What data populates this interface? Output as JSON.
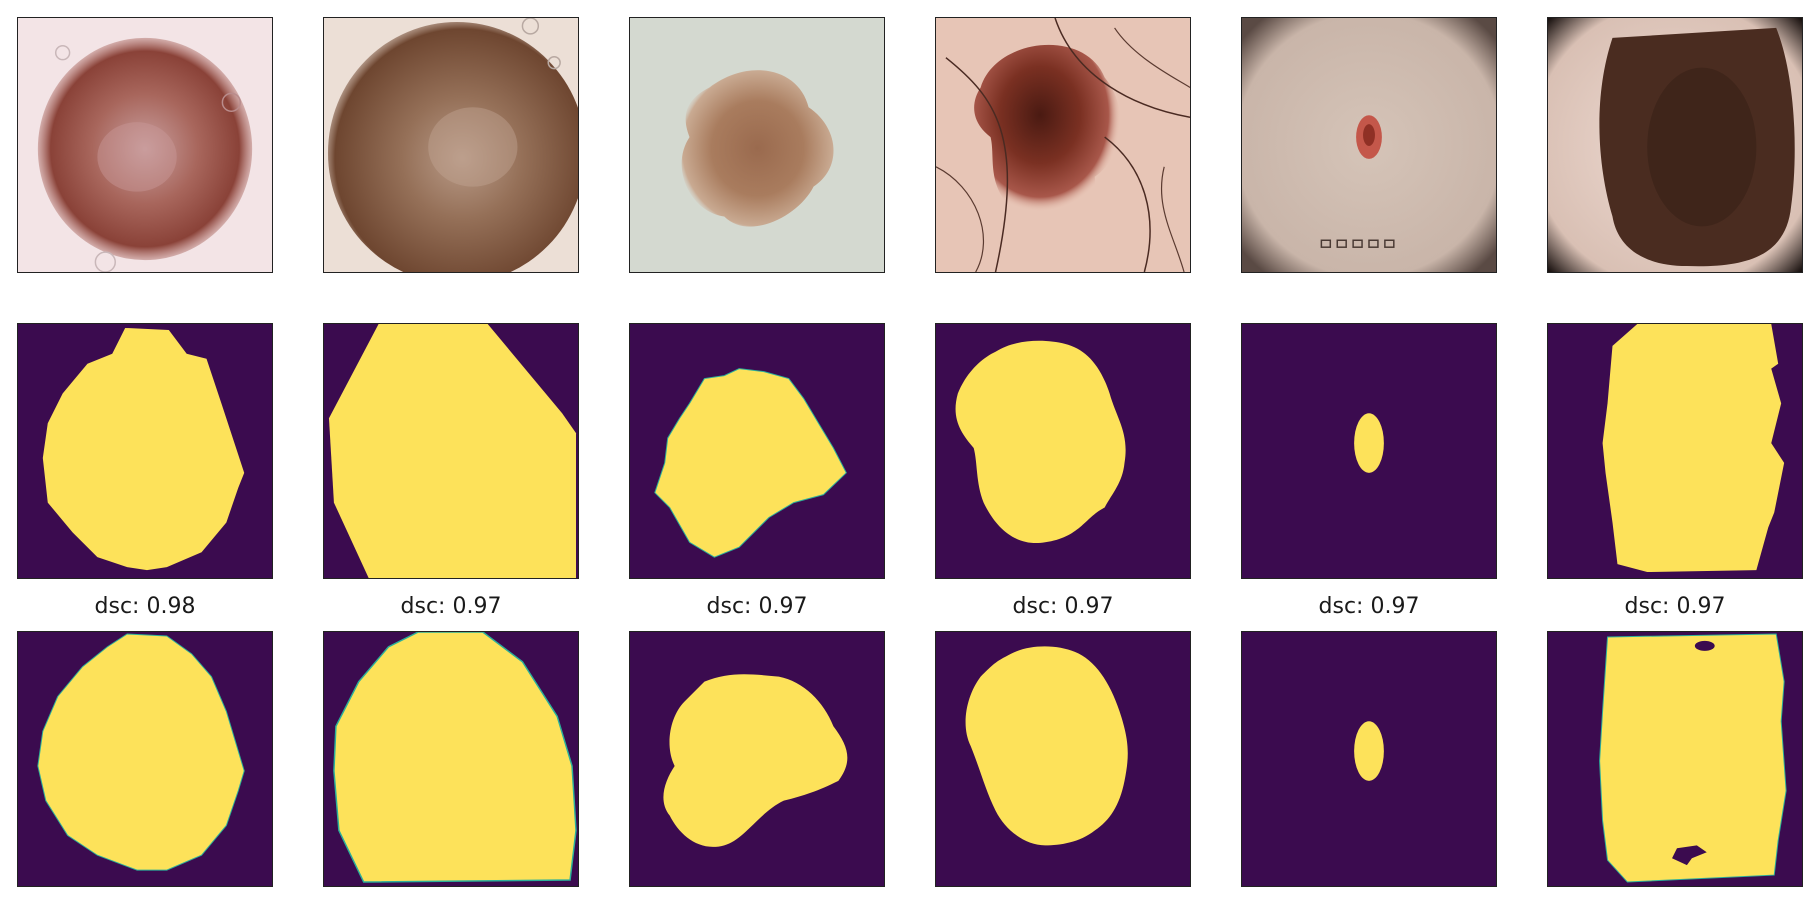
{
  "columns": [
    {
      "id": "c1",
      "dsc_label": "dsc: 0.98"
    },
    {
      "id": "c2",
      "dsc_label": "dsc: 0.97"
    },
    {
      "id": "c3",
      "dsc_label": "dsc: 0.97"
    },
    {
      "id": "c4",
      "dsc_label": "dsc: 0.97"
    },
    {
      "id": "c5",
      "dsc_label": "dsc: 0.97"
    },
    {
      "id": "c6",
      "dsc_label": "dsc: 0.97"
    }
  ],
  "colors": {
    "mask_background": "#3b0b4f",
    "mask_foreground": "#fde25a",
    "mask_edge": "#2bb09a"
  }
}
